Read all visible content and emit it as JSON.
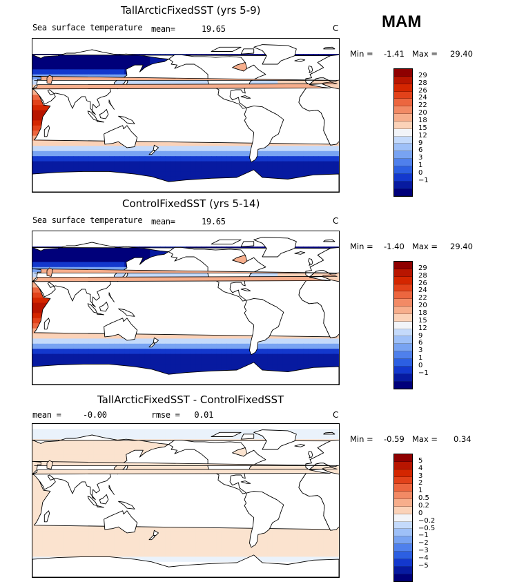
{
  "season": "MAM",
  "palette": {
    "full": [
      "#8f0000",
      "#b81500",
      "#d42600",
      "#e2421a",
      "#ec663f",
      "#f28a65",
      "#f7ae8c",
      "#fbd2b8",
      "#f2f4f8",
      "#c4dafb",
      "#9ec0f8",
      "#78a3f2",
      "#4f80ec",
      "#2c5fe2",
      "#1338cd",
      "#071aa0",
      "#00007a"
    ],
    "lightest": "#fbe3cf",
    "land": "#ffffff"
  },
  "panels": [
    {
      "title": "TallArcticFixedSST (yrs 5-9)",
      "left_label": "Sea surface temperature",
      "mean_label": "mean=",
      "mean_value": "19.65",
      "unit": "C",
      "min_label": "Min =",
      "min_value": "-1.41",
      "max_label": "Max =",
      "max_value": "29.40",
      "colorbar_ticks": [
        "29",
        "28",
        "26",
        "24",
        "22",
        "20",
        "18",
        "15",
        "12",
        "9",
        "6",
        "3",
        "1",
        "0",
        "-1"
      ],
      "field": "sst"
    },
    {
      "title": "ControlFixedSST (yrs 5-14)",
      "left_label": "Sea surface temperature",
      "mean_label": "mean=",
      "mean_value": "19.65",
      "unit": "C",
      "min_label": "Min =",
      "min_value": "-1.40",
      "max_label": "Max =",
      "max_value": "29.40",
      "colorbar_ticks": [
        "29",
        "28",
        "26",
        "24",
        "22",
        "20",
        "18",
        "15",
        "12",
        "9",
        "6",
        "3",
        "1",
        "0",
        "-1"
      ],
      "field": "sst"
    },
    {
      "title": "TallArcticFixedSST - ControlFixedSST",
      "left_label": "mean =",
      "mean_label": "-0.00",
      "mean_value": "rmse =   0.01",
      "unit": "C",
      "min_label": "Min =",
      "min_value": "-0.59",
      "max_label": "Max =",
      "max_value": "0.34",
      "colorbar_ticks": [
        "5",
        "4",
        "3",
        "2",
        "1",
        "0.5",
        "0.2",
        "0",
        "-0.2",
        "-0.5",
        "-1",
        "-2",
        "-3",
        "-4",
        "-5"
      ],
      "field": "diff"
    }
  ]
}
